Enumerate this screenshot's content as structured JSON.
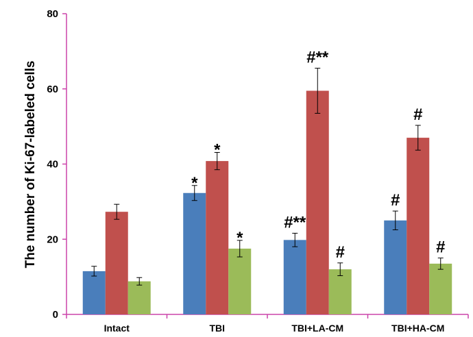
{
  "chart_data": {
    "type": "bar",
    "categories": [
      "Intact",
      "TBI",
      "TBI+LA-CM",
      "TBI+HA-CM"
    ],
    "series": [
      {
        "values": [
          11.5,
          32.3,
          19.8,
          25.0
        ],
        "errors": [
          1.3,
          2.0,
          1.8,
          2.5
        ],
        "color": "#4a7ebb"
      },
      {
        "values": [
          27.3,
          40.8,
          59.5,
          47.0
        ],
        "errors": [
          2.0,
          2.3,
          6.0,
          3.3
        ],
        "color": "#c0504d"
      },
      {
        "values": [
          8.8,
          17.5,
          12.0,
          13.5
        ],
        "errors": [
          1.0,
          2.2,
          1.7,
          1.5
        ],
        "color": "#9bbb59"
      }
    ],
    "annotations": [
      [
        "",
        "*",
        "#**",
        "#"
      ],
      [
        "",
        "*",
        "#**",
        "#"
      ],
      [
        "",
        "*",
        "#",
        "#"
      ]
    ],
    "ylabel": "The number of Ki-67-labeled cells",
    "xlabel": "",
    "ylim": [
      0,
      80
    ],
    "yticks": [
      "0",
      "20",
      "40",
      "60",
      "80"
    ],
    "axis_color": "#cc44aa",
    "grid": false,
    "legend": "none"
  }
}
